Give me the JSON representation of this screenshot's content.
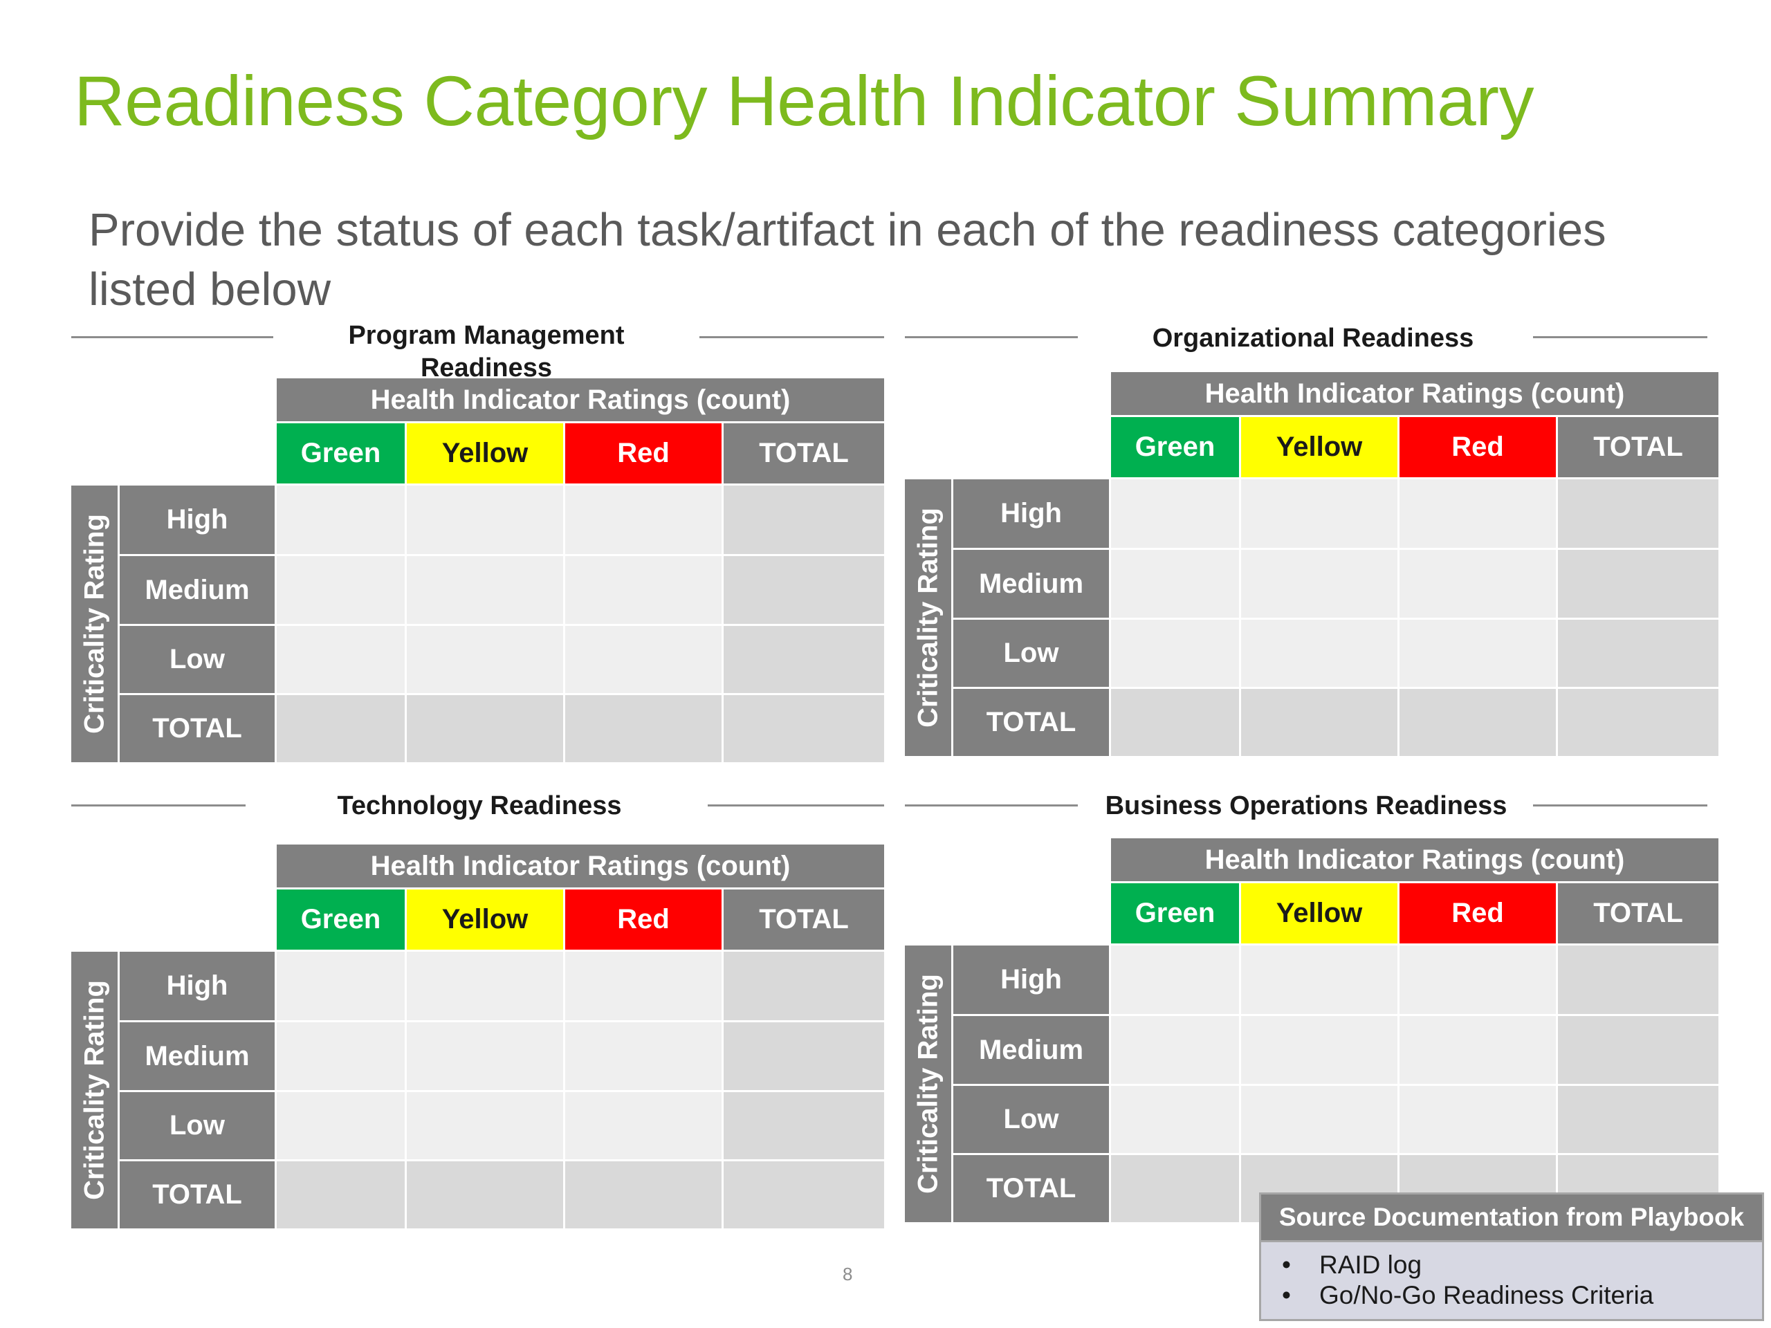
{
  "title": "Readiness Category Health Indicator Summary",
  "subtitle": "Provide the status of each task/artifact in each of the readiness categories listed below",
  "table_labels": {
    "header": "Health Indicator Ratings (count)",
    "columns": [
      "Green",
      "Yellow",
      "Red",
      "TOTAL"
    ],
    "rows": [
      "High",
      "Medium",
      "Low",
      "TOTAL"
    ],
    "side_label": "Criticality Rating"
  },
  "panels": [
    {
      "title": "Program Management Readiness"
    },
    {
      "title": "Organizational Readiness"
    },
    {
      "title": "Technology Readiness"
    },
    {
      "title": "Business Operations Readiness"
    }
  ],
  "colors": {
    "title": "#7DBA1E",
    "green": "#00B050",
    "yellow": "#FFFF00",
    "red": "#FF0000",
    "gray": "#808080"
  },
  "source_box": {
    "header": "Source Documentation from Playbook",
    "items": [
      "RAID log",
      "Go/No-Go Readiness Criteria"
    ]
  },
  "page_number": "8"
}
